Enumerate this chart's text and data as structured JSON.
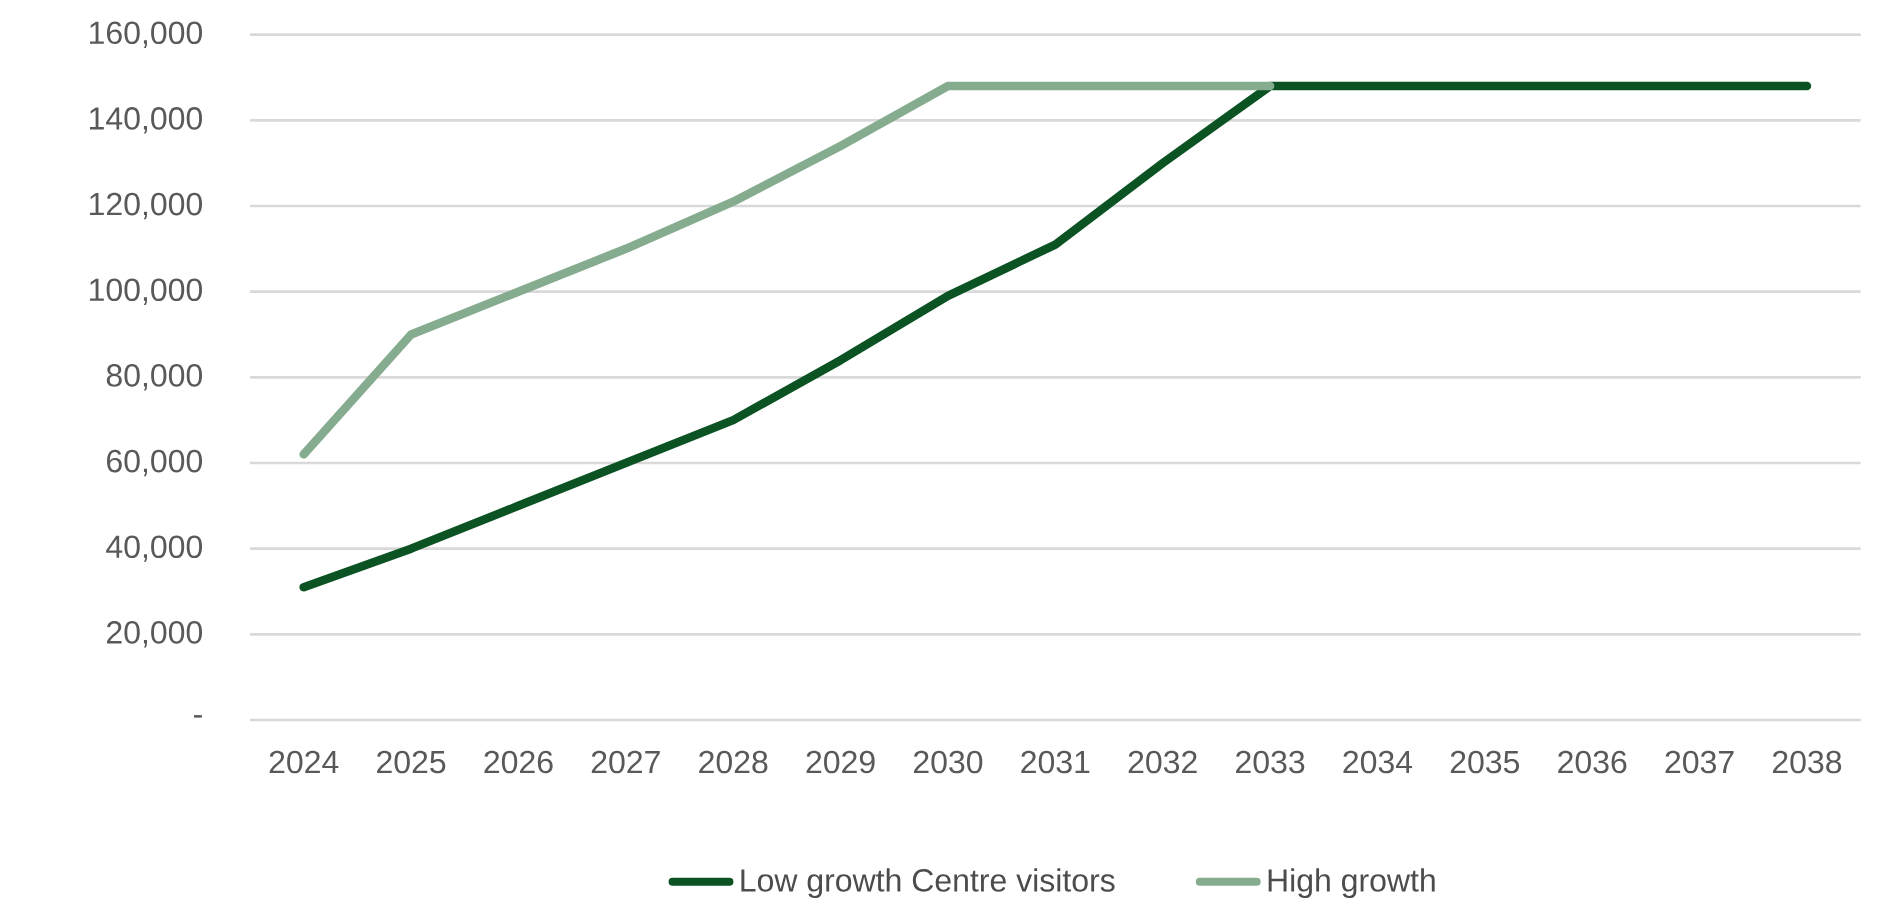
{
  "chart_data": {
    "type": "line",
    "categories": [
      "2024",
      "2025",
      "2026",
      "2027",
      "2028",
      "2029",
      "2030",
      "2031",
      "2032",
      "2033",
      "2034",
      "2035",
      "2036",
      "2037",
      "2038"
    ],
    "series": [
      {
        "name": "Low growth Centre visitors",
        "color": "#0b5323",
        "values": [
          31000,
          40000,
          50000,
          60000,
          70000,
          84000,
          99000,
          111000,
          130000,
          148000,
          148000,
          148000,
          148000,
          148000,
          148000
        ]
      },
      {
        "name": "High growth",
        "color": "#86ac8f",
        "values": [
          62000,
          90000,
          100000,
          110000,
          121000,
          134000,
          148000,
          148000,
          148000,
          148000,
          null,
          null,
          null,
          null,
          null
        ]
      }
    ],
    "ylim": [
      0,
      160000
    ],
    "yticks": [
      {
        "value": 0,
        "label": "-"
      },
      {
        "value": 20000,
        "label": "20,000"
      },
      {
        "value": 40000,
        "label": "40,000"
      },
      {
        "value": 60000,
        "label": "60,000"
      },
      {
        "value": 80000,
        "label": "80,000"
      },
      {
        "value": 100000,
        "label": "100,000"
      },
      {
        "value": 120000,
        "label": "120,000"
      },
      {
        "value": 140000,
        "label": "140,000"
      },
      {
        "value": 160000,
        "label": "160,000"
      }
    ],
    "grid": "y",
    "legend": "bottom",
    "marker": "none",
    "line_style": "solid"
  }
}
